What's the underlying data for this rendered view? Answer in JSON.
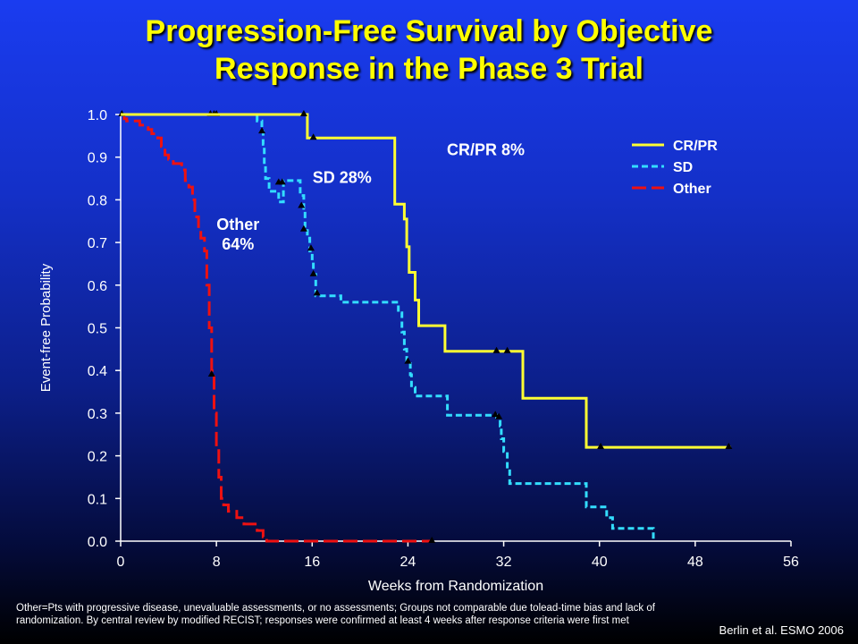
{
  "slide": {
    "title_line1": "Progression-Free Survival by Objective",
    "title_line2": "Response in the Phase 3 Trial",
    "footnote": "Other=Pts with progressive disease, unevaluable assessments, or no assessments; Groups not comparable due tolead-time bias and lack of randomization. By central review by modified RECIST; responses were confirmed at least 4 weeks after response criteria were first met",
    "citation": "Berlin et al. ESMO 2006"
  },
  "colors": {
    "crpr": "#ffff33",
    "sd": "#33ddff",
    "other": "#ee1111",
    "axis": "#ffffff",
    "title": "#ffff00",
    "censor": "#000000"
  },
  "chart_data": {
    "type": "line",
    "subtype": "kaplan-meier step",
    "xlabel": "Weeks from Randomization",
    "ylabel": "Event-free Probability",
    "xlim": [
      0,
      56
    ],
    "ylim": [
      0,
      1
    ],
    "x_ticks": [
      "0",
      "8",
      "16",
      "24",
      "32",
      "40",
      "48",
      "56"
    ],
    "y_ticks": [
      "0.0",
      "0.1",
      "0.2",
      "0.3",
      "0.4",
      "0.5",
      "0.6",
      "0.7",
      "0.8",
      "0.9",
      "1.0"
    ],
    "x_tick_values": [
      0,
      8,
      16,
      24,
      32,
      40,
      48,
      56
    ],
    "y_tick_values": [
      0,
      0.1,
      0.2,
      0.3,
      0.4,
      0.5,
      0.6,
      0.7,
      0.8,
      0.9,
      1.0
    ],
    "legend": [
      "CR/PR",
      "SD",
      "Other"
    ],
    "legend_position": "top-right",
    "series": [
      {
        "name": "CR/PR",
        "style": "solid",
        "color": "#ffff33",
        "label": "CR/PR  8%",
        "label_at": [
          30.5,
          0.905
        ],
        "points": [
          [
            0,
            1.0
          ],
          [
            15.6,
            1.0
          ],
          [
            15.6,
            0.945
          ],
          [
            22.9,
            0.945
          ],
          [
            22.9,
            0.79
          ],
          [
            23.7,
            0.79
          ],
          [
            23.7,
            0.755
          ],
          [
            23.9,
            0.755
          ],
          [
            23.9,
            0.69
          ],
          [
            24.1,
            0.69
          ],
          [
            24.1,
            0.63
          ],
          [
            24.6,
            0.63
          ],
          [
            24.6,
            0.565
          ],
          [
            24.9,
            0.565
          ],
          [
            24.9,
            0.505
          ],
          [
            27.1,
            0.505
          ],
          [
            27.1,
            0.445
          ],
          [
            33.6,
            0.445
          ],
          [
            33.6,
            0.335
          ],
          [
            38.9,
            0.335
          ],
          [
            38.9,
            0.22
          ],
          [
            51.0,
            0.22
          ]
        ],
        "censor": [
          [
            15.3,
            1.0
          ],
          [
            16.1,
            0.945
          ],
          [
            31.4,
            0.445
          ],
          [
            32.3,
            0.445
          ],
          [
            40.1,
            0.22
          ],
          [
            50.8,
            0.22
          ]
        ]
      },
      {
        "name": "SD",
        "style": "dashed",
        "color": "#33ddff",
        "label": "SD  28%",
        "label_at": [
          18.5,
          0.84
        ],
        "points": [
          [
            0,
            1.0
          ],
          [
            11.4,
            1.0
          ],
          [
            11.4,
            0.985
          ],
          [
            11.8,
            0.985
          ],
          [
            11.8,
            0.96
          ],
          [
            11.9,
            0.96
          ],
          [
            11.9,
            0.93
          ],
          [
            12.0,
            0.93
          ],
          [
            12.0,
            0.88
          ],
          [
            12.1,
            0.88
          ],
          [
            12.1,
            0.85
          ],
          [
            12.4,
            0.85
          ],
          [
            12.4,
            0.82
          ],
          [
            13.2,
            0.82
          ],
          [
            13.2,
            0.795
          ],
          [
            13.6,
            0.795
          ],
          [
            13.6,
            0.845
          ],
          [
            15.0,
            0.845
          ],
          [
            15.0,
            0.81
          ],
          [
            15.3,
            0.81
          ],
          [
            15.3,
            0.78
          ],
          [
            15.4,
            0.78
          ],
          [
            15.4,
            0.735
          ],
          [
            15.6,
            0.735
          ],
          [
            15.6,
            0.71
          ],
          [
            15.8,
            0.71
          ],
          [
            15.8,
            0.68
          ],
          [
            16.0,
            0.68
          ],
          [
            16.0,
            0.655
          ],
          [
            16.1,
            0.655
          ],
          [
            16.1,
            0.625
          ],
          [
            16.3,
            0.625
          ],
          [
            16.3,
            0.575
          ],
          [
            18.4,
            0.575
          ],
          [
            18.4,
            0.56
          ],
          [
            23.2,
            0.56
          ],
          [
            23.2,
            0.535
          ],
          [
            23.5,
            0.535
          ],
          [
            23.5,
            0.49
          ],
          [
            23.7,
            0.49
          ],
          [
            23.7,
            0.45
          ],
          [
            23.9,
            0.45
          ],
          [
            23.9,
            0.42
          ],
          [
            24.2,
            0.42
          ],
          [
            24.2,
            0.39
          ],
          [
            24.3,
            0.39
          ],
          [
            24.3,
            0.36
          ],
          [
            24.6,
            0.36
          ],
          [
            24.6,
            0.34
          ],
          [
            27.3,
            0.34
          ],
          [
            27.3,
            0.295
          ],
          [
            31.4,
            0.295
          ],
          [
            31.4,
            0.29
          ],
          [
            31.7,
            0.29
          ],
          [
            31.7,
            0.27
          ],
          [
            31.8,
            0.27
          ],
          [
            31.8,
            0.24
          ],
          [
            32.0,
            0.24
          ],
          [
            32.0,
            0.21
          ],
          [
            32.3,
            0.21
          ],
          [
            32.3,
            0.17
          ],
          [
            32.5,
            0.17
          ],
          [
            32.5,
            0.135
          ],
          [
            38.9,
            0.135
          ],
          [
            38.9,
            0.08
          ],
          [
            40.6,
            0.08
          ],
          [
            40.6,
            0.055
          ],
          [
            41.1,
            0.055
          ],
          [
            41.1,
            0.03
          ],
          [
            44.5,
            0.03
          ],
          [
            44.5,
            0.0
          ]
        ],
        "censor": [
          [
            7.5,
            1.0
          ],
          [
            7.8,
            1.0
          ],
          [
            8.0,
            1.0
          ],
          [
            11.8,
            0.96
          ],
          [
            13.2,
            0.84
          ],
          [
            13.5,
            0.84
          ],
          [
            15.1,
            0.785
          ],
          [
            15.3,
            0.73
          ],
          [
            15.9,
            0.685
          ],
          [
            16.1,
            0.625
          ],
          [
            16.4,
            0.58
          ],
          [
            24.0,
            0.42
          ],
          [
            31.3,
            0.295
          ],
          [
            31.6,
            0.29
          ]
        ]
      },
      {
        "name": "Other",
        "style": "dashed",
        "color": "#ee1111",
        "label": "Other\n64%",
        "label_at": [
          9.8,
          0.73
        ],
        "points": [
          [
            0,
            1.0
          ],
          [
            0.3,
            1.0
          ],
          [
            0.3,
            0.99
          ],
          [
            0.5,
            0.99
          ],
          [
            0.5,
            0.985
          ],
          [
            1.6,
            0.985
          ],
          [
            1.6,
            0.975
          ],
          [
            2.3,
            0.975
          ],
          [
            2.3,
            0.965
          ],
          [
            2.6,
            0.965
          ],
          [
            2.6,
            0.955
          ],
          [
            3.1,
            0.955
          ],
          [
            3.1,
            0.945
          ],
          [
            3.4,
            0.945
          ],
          [
            3.4,
            0.925
          ],
          [
            3.7,
            0.925
          ],
          [
            3.7,
            0.905
          ],
          [
            4.0,
            0.905
          ],
          [
            4.0,
            0.895
          ],
          [
            4.4,
            0.895
          ],
          [
            4.4,
            0.885
          ],
          [
            5.1,
            0.885
          ],
          [
            5.1,
            0.87
          ],
          [
            5.4,
            0.87
          ],
          [
            5.4,
            0.845
          ],
          [
            5.7,
            0.845
          ],
          [
            5.7,
            0.83
          ],
          [
            6.0,
            0.83
          ],
          [
            6.0,
            0.8
          ],
          [
            6.2,
            0.8
          ],
          [
            6.2,
            0.76
          ],
          [
            6.5,
            0.76
          ],
          [
            6.5,
            0.73
          ],
          [
            6.7,
            0.73
          ],
          [
            6.7,
            0.71
          ],
          [
            7.0,
            0.71
          ],
          [
            7.0,
            0.68
          ],
          [
            7.2,
            0.68
          ],
          [
            7.2,
            0.6
          ],
          [
            7.4,
            0.6
          ],
          [
            7.4,
            0.5
          ],
          [
            7.6,
            0.5
          ],
          [
            7.6,
            0.4
          ],
          [
            7.8,
            0.4
          ],
          [
            7.8,
            0.3
          ],
          [
            8.0,
            0.3
          ],
          [
            8.0,
            0.22
          ],
          [
            8.2,
            0.22
          ],
          [
            8.2,
            0.15
          ],
          [
            8.4,
            0.15
          ],
          [
            8.4,
            0.1
          ],
          [
            8.6,
            0.1
          ],
          [
            8.6,
            0.085
          ],
          [
            9.0,
            0.085
          ],
          [
            9.0,
            0.07
          ],
          [
            9.7,
            0.07
          ],
          [
            9.7,
            0.055
          ],
          [
            10.3,
            0.055
          ],
          [
            10.3,
            0.04
          ],
          [
            11.4,
            0.04
          ],
          [
            11.4,
            0.025
          ],
          [
            11.9,
            0.025
          ],
          [
            11.9,
            0.01
          ],
          [
            12.2,
            0.01
          ],
          [
            12.2,
            0.0
          ],
          [
            25.9,
            0.0
          ]
        ],
        "censor": [
          [
            0.1,
            1.0
          ],
          [
            7.6,
            0.39
          ],
          [
            26.0,
            0.0
          ]
        ]
      }
    ]
  }
}
